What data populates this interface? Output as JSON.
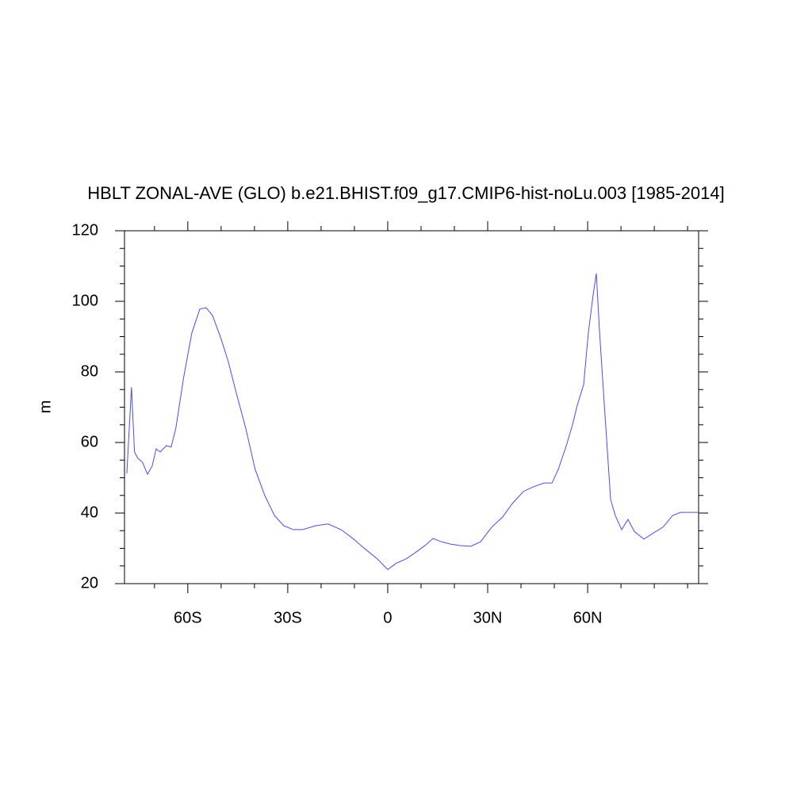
{
  "chart_data": {
    "type": "line",
    "title": "HBLT ZONAL-AVE (GLO) b.e21.BHIST.f09_g17.CMIP6-hist-noLu.003 [1985-2014]",
    "y_label": "m",
    "x": [
      -78.3,
      -76.9,
      -76.0,
      -75.0,
      -73.6,
      -72.1,
      -70.7,
      -69.5,
      -68.3,
      -66.4,
      -65.0,
      -63.6,
      -61.2,
      -58.8,
      -56.4,
      -54.5,
      -52.6,
      -50.2,
      -47.9,
      -45.5,
      -42.6,
      -39.8,
      -36.9,
      -34.0,
      -31.2,
      -28.3,
      -25.5,
      -21.7,
      -17.9,
      -14.0,
      -10.2,
      -6.9,
      -3.1,
      0.0,
      2.6,
      5.5,
      8.3,
      11.2,
      13.6,
      16.0,
      18.8,
      21.7,
      25.0,
      27.9,
      31.2,
      34.5,
      37.4,
      40.7,
      43.6,
      46.9,
      49.3,
      51.2,
      53.6,
      55.5,
      56.9,
      58.8,
      60.2,
      61.7,
      62.6,
      63.6,
      65.0,
      66.9,
      68.3,
      70.2,
      72.1,
      74.0,
      76.9,
      79.8,
      82.6,
      85.5,
      87.9,
      93.3
    ],
    "series": [
      {
        "name": "HBLT",
        "color": "#4a4aff",
        "values": [
          51.2,
          75.7,
          57.3,
          55.5,
          54.4,
          51.0,
          53.3,
          58.2,
          57.3,
          59.1,
          58.7,
          64.0,
          78.7,
          91.0,
          97.8,
          98.2,
          96.0,
          89.9,
          83.1,
          74.2,
          64.0,
          52.4,
          45.0,
          39.3,
          36.4,
          35.3,
          35.3,
          36.4,
          36.9,
          35.3,
          32.6,
          29.9,
          27.0,
          24.0,
          25.8,
          27.0,
          28.8,
          30.8,
          32.8,
          31.9,
          31.2,
          30.8,
          30.6,
          31.9,
          36.0,
          38.9,
          42.7,
          46.1,
          47.4,
          48.5,
          48.5,
          52.4,
          59.1,
          65.2,
          70.6,
          76.4,
          91.0,
          102.2,
          107.9,
          91.0,
          70.8,
          43.8,
          39.3,
          35.3,
          38.2,
          34.8,
          32.6,
          34.4,
          36.0,
          39.3,
          40.2,
          40.2
        ]
      }
    ],
    "xlim": [
      -79,
      93.3
    ],
    "ylim": [
      20,
      120
    ],
    "xticks": [
      {
        "value": -60,
        "label": "60S"
      },
      {
        "value": -30,
        "label": "30S"
      },
      0,
      {
        "value": 30,
        "label": "30N"
      },
      {
        "value": 60,
        "label": "60N"
      }
    ],
    "xminorticks": [
      -70,
      -50,
      -40,
      -20,
      -10,
      10,
      20,
      40,
      50,
      70,
      80,
      90
    ],
    "yticks": [
      20,
      40,
      60,
      80,
      100,
      120
    ],
    "yminorticks": [
      25,
      30,
      35,
      45,
      50,
      55,
      65,
      70,
      75,
      85,
      90,
      95,
      105,
      110,
      115
    ]
  }
}
